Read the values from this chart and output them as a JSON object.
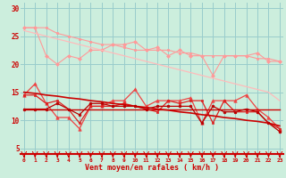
{
  "background_color": "#cceedd",
  "grid_color": "#99cccc",
  "x_label": "Vent moyen/en rafales ( km/h )",
  "x_ticks": [
    0,
    1,
    2,
    3,
    4,
    5,
    6,
    7,
    8,
    9,
    10,
    11,
    12,
    13,
    14,
    15,
    16,
    17,
    18,
    19,
    20,
    21,
    22,
    23
  ],
  "ylim": [
    4,
    31
  ],
  "yticks": [
    5,
    10,
    15,
    20,
    25,
    30
  ],
  "lines": [
    {
      "color": "#ff9999",
      "lw": 0.8,
      "marker": "s",
      "ms": 1.8,
      "y": [
        26.5,
        26.5,
        26.5,
        25.5,
        25.0,
        24.5,
        24.0,
        23.5,
        23.5,
        23.0,
        22.5,
        22.5,
        22.5,
        22.5,
        22.0,
        22.0,
        21.5,
        21.5,
        21.5,
        21.5,
        21.5,
        21.0,
        21.0,
        20.5
      ]
    },
    {
      "color": "#ff9999",
      "lw": 0.8,
      "marker": "D",
      "ms": 2.0,
      "y": [
        26.5,
        26.5,
        21.5,
        20.0,
        21.5,
        21.0,
        22.5,
        22.5,
        23.5,
        23.5,
        24.0,
        22.5,
        23.0,
        21.5,
        22.5,
        21.5,
        21.5,
        18.0,
        21.5,
        21.5,
        21.5,
        22.0,
        20.5,
        20.5
      ]
    },
    {
      "color": "#ffbbbb",
      "lw": 0.9,
      "marker": null,
      "ms": 0,
      "y": [
        26.0,
        25.5,
        25.0,
        24.5,
        24.0,
        23.5,
        23.0,
        22.5,
        22.0,
        21.5,
        21.0,
        20.5,
        20.0,
        19.5,
        19.0,
        18.5,
        18.0,
        17.5,
        17.0,
        16.5,
        16.0,
        15.5,
        15.0,
        13.5
      ]
    },
    {
      "color": "#ee4444",
      "lw": 0.9,
      "marker": "^",
      "ms": 2.5,
      "y": [
        14.5,
        16.5,
        13.0,
        10.5,
        10.5,
        8.5,
        12.5,
        12.5,
        13.5,
        13.5,
        15.5,
        12.5,
        13.5,
        13.5,
        13.5,
        14.0,
        9.5,
        13.5,
        13.5,
        13.5,
        14.5,
        12.0,
        10.5,
        8.5
      ]
    },
    {
      "color": "#dd2222",
      "lw": 0.9,
      "marker": "s",
      "ms": 2.0,
      "y": [
        14.5,
        14.5,
        13.0,
        13.5,
        12.0,
        9.5,
        12.5,
        12.5,
        12.5,
        13.0,
        12.5,
        12.0,
        11.5,
        13.5,
        13.0,
        13.5,
        13.5,
        9.5,
        13.5,
        11.5,
        11.5,
        11.5,
        9.5,
        8.5
      ]
    },
    {
      "color": "#cc0000",
      "lw": 1.2,
      "marker": null,
      "ms": 0,
      "y": [
        15.0,
        14.8,
        14.5,
        14.3,
        14.0,
        13.8,
        13.5,
        13.3,
        13.0,
        12.8,
        12.5,
        12.3,
        12.0,
        11.8,
        11.5,
        11.3,
        11.0,
        10.8,
        10.5,
        10.3,
        10.0,
        9.8,
        9.5,
        9.0
      ]
    },
    {
      "color": "#cc0000",
      "lw": 1.0,
      "marker": null,
      "ms": 0,
      "y": [
        12.0,
        12.0,
        12.0,
        12.0,
        12.0,
        12.0,
        12.0,
        12.0,
        12.0,
        12.0,
        12.0,
        12.0,
        12.0,
        12.0,
        12.0,
        12.0,
        12.0,
        12.0,
        12.0,
        12.0,
        12.0,
        12.0,
        12.0,
        12.0
      ]
    },
    {
      "color": "#bb0000",
      "lw": 0.9,
      "marker": "o",
      "ms": 2.0,
      "y": [
        12.0,
        12.0,
        12.0,
        13.0,
        12.0,
        11.0,
        13.0,
        13.0,
        12.5,
        12.5,
        12.5,
        12.0,
        12.5,
        12.5,
        12.5,
        12.5,
        9.5,
        12.5,
        11.5,
        11.5,
        12.0,
        11.5,
        9.5,
        8.0
      ]
    }
  ]
}
